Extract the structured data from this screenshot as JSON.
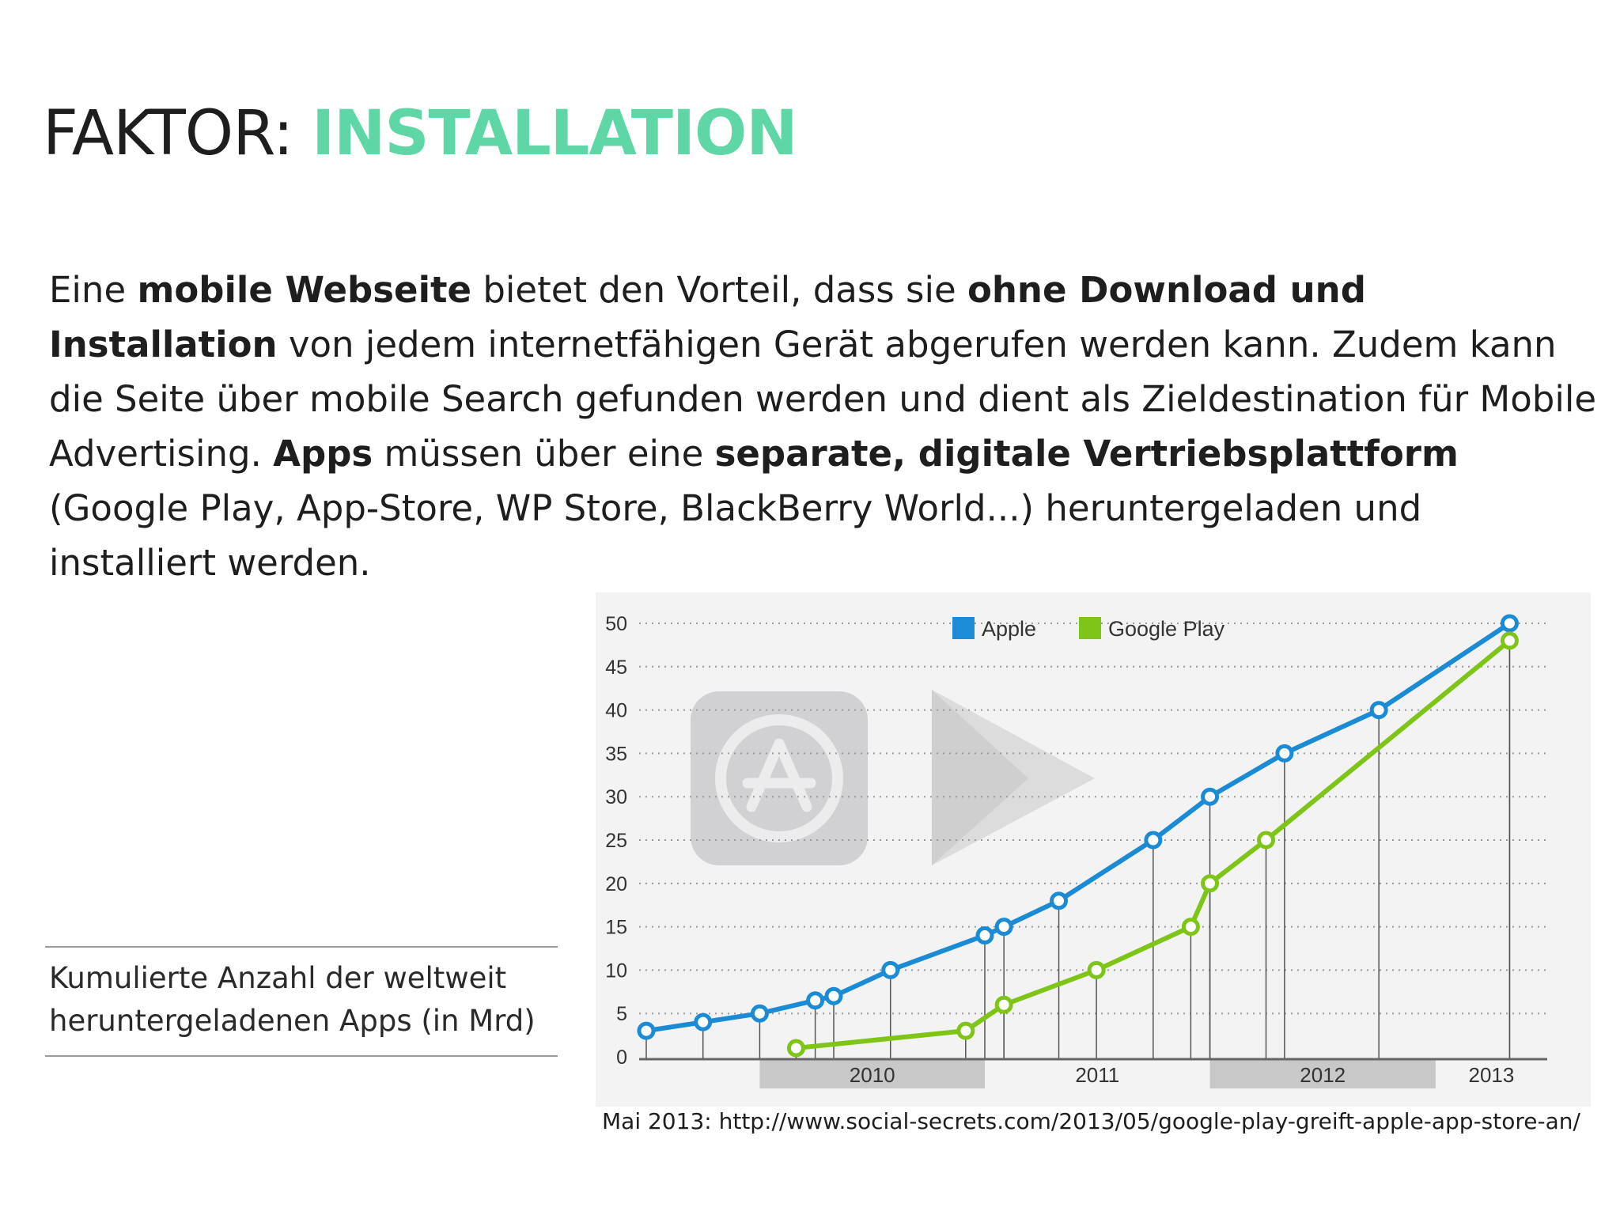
{
  "slide": {
    "title_prefix": "FAKTOR: ",
    "title_accent": "INSTALLATION",
    "accent_color": "#5fd6a6",
    "body": [
      {
        "t": "Eine "
      },
      {
        "t": "mobile Webseite",
        "b": true
      },
      {
        "t": " bietet den Vorteil, dass sie "
      },
      {
        "t": "ohne Download und Installation",
        "b": true
      },
      {
        "t": " von jedem internetfähigen Gerät abgerufen werden kann. Zudem kann die Seite über mobile Search gefunden werden und dient als Zieldestination für Mobile Advertising. "
      },
      {
        "t": "Apps",
        "b": true
      },
      {
        "t": " müssen über eine "
      },
      {
        "t": "separate, digitale Vertriebsplattform",
        "b": true
      },
      {
        "t": " (Google Play, App-Store, WP Store, BlackBerry World...) heruntergeladen und installiert werden."
      }
    ],
    "caption": "Kumulierte Anzahl der weltweit heruntergeladenen Apps (in Mrd)",
    "source": "Mai 2013: http://www.social-secrets.com/2013/05/google-play-greift-apple-app-store-an/"
  },
  "chart_data": {
    "type": "line",
    "title": "",
    "xlabel": "",
    "ylabel": "",
    "ylim": [
      0,
      50
    ],
    "y_ticks": [
      0,
      5,
      10,
      15,
      20,
      25,
      30,
      35,
      40,
      45,
      50
    ],
    "x_ticks": [
      "2010",
      "2011",
      "2012",
      "2013"
    ],
    "x_range": [
      "2009-07-01",
      "2013-07-01"
    ],
    "legend_position": "top",
    "grid": "horizontal-dotted",
    "series": [
      {
        "name": "Apple",
        "color": "#1b8bd6",
        "points": [
          {
            "x": "2009-07-01",
            "y": 3
          },
          {
            "x": "2009-10-01",
            "y": 4
          },
          {
            "x": "2010-01-01",
            "y": 5
          },
          {
            "x": "2010-04-01",
            "y": 6.5
          },
          {
            "x": "2010-05-01",
            "y": 7
          },
          {
            "x": "2010-08-01",
            "y": 10
          },
          {
            "x": "2011-01-01",
            "y": 14
          },
          {
            "x": "2011-02-01",
            "y": 15
          },
          {
            "x": "2011-05-01",
            "y": 18
          },
          {
            "x": "2011-10-01",
            "y": 25
          },
          {
            "x": "2012-01-01",
            "y": 30
          },
          {
            "x": "2012-05-01",
            "y": 35
          },
          {
            "x": "2012-10-01",
            "y": 40
          },
          {
            "x": "2013-05-01",
            "y": 50
          }
        ]
      },
      {
        "name": "Google Play",
        "color": "#7ec518",
        "points": [
          {
            "x": "2010-03-01",
            "y": 1
          },
          {
            "x": "2010-12-01",
            "y": 3
          },
          {
            "x": "2011-02-01",
            "y": 6
          },
          {
            "x": "2011-07-01",
            "y": 10
          },
          {
            "x": "2011-12-01",
            "y": 15
          },
          {
            "x": "2012-01-01",
            "y": 20
          },
          {
            "x": "2012-04-01",
            "y": 25
          },
          {
            "x": "2013-05-01",
            "y": 48
          }
        ]
      }
    ]
  }
}
